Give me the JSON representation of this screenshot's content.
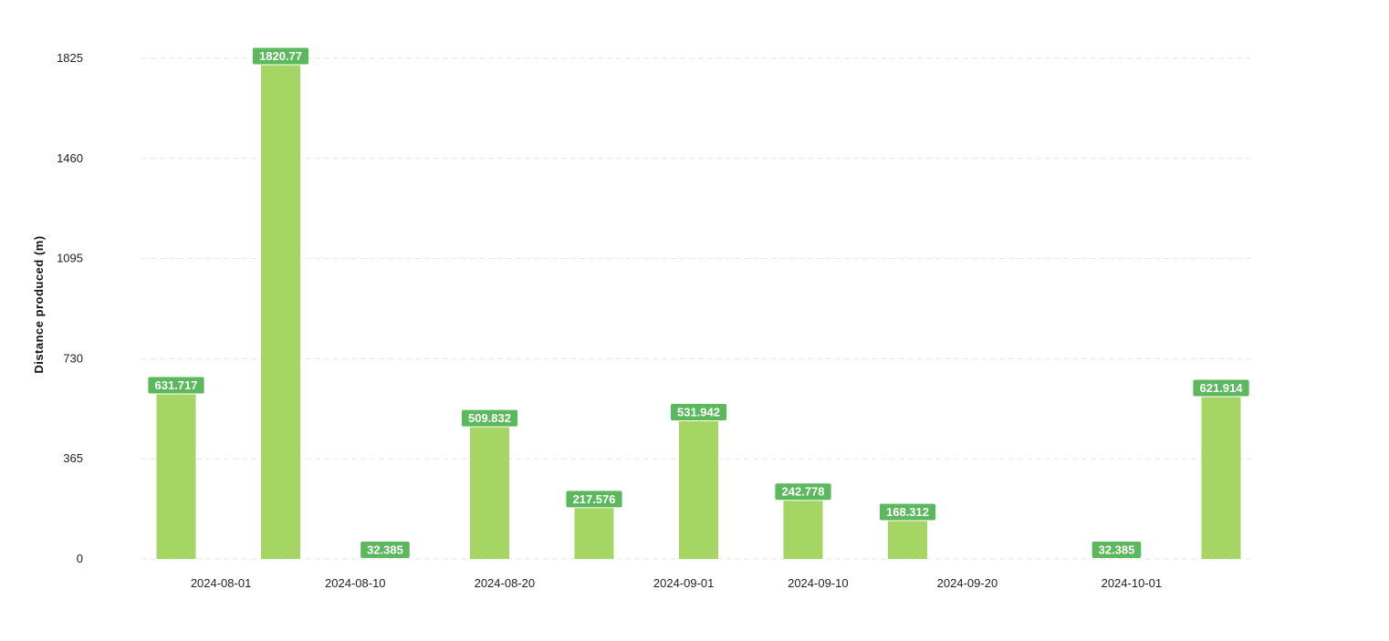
{
  "chart_data": {
    "type": "bar",
    "ylabel": "Distance produced (m)",
    "xlabel": "",
    "title": "",
    "ylim": [
      0,
      1825
    ],
    "yticks": [
      "0",
      "365",
      "730",
      "1095",
      "1460",
      "1825"
    ],
    "grid": true,
    "legend": "none",
    "xticks": [
      {
        "date": "2024-08-01",
        "label": "2024-08-01"
      },
      {
        "date": "2024-08-10",
        "label": "2024-08-10"
      },
      {
        "date": "2024-08-20",
        "label": "2024-08-20"
      },
      {
        "date": "2024-09-01",
        "label": "2024-09-01"
      },
      {
        "date": "2024-09-10",
        "label": "2024-09-10"
      },
      {
        "date": "2024-09-20",
        "label": "2024-09-20"
      },
      {
        "date": "2024-10-01",
        "label": "2024-10-01"
      }
    ],
    "bars": [
      {
        "date": "2024-07-29",
        "value": 600,
        "label": "631.717"
      },
      {
        "date": "2024-08-05",
        "value": 1800,
        "label": "1820.77"
      },
      {
        "date": "2024-08-12",
        "value": 0,
        "label": "32.385"
      },
      {
        "date": "2024-08-19",
        "value": 480,
        "label": "509.832"
      },
      {
        "date": "2024-08-26",
        "value": 185,
        "label": "217.576"
      },
      {
        "date": "2024-09-02",
        "value": 502,
        "label": "531.942"
      },
      {
        "date": "2024-09-09",
        "value": 212,
        "label": "242.778"
      },
      {
        "date": "2024-09-16",
        "value": 138,
        "label": "168.312"
      },
      {
        "date": "2024-09-30",
        "value": 0,
        "label": "32.385"
      },
      {
        "date": "2024-10-07",
        "value": 590,
        "label": "621.914"
      }
    ],
    "colors": {
      "bar": "#a5d664",
      "label_bg": "#5cb85c",
      "grid": "#e6e6e6"
    }
  }
}
